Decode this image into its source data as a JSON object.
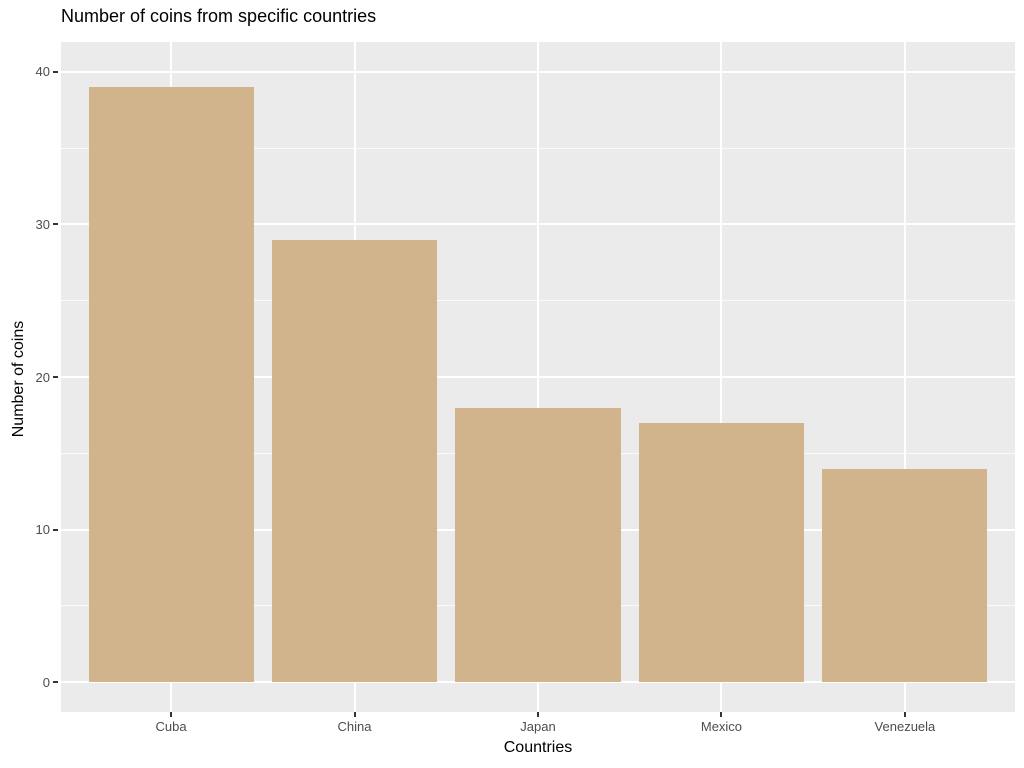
{
  "chart_data": {
    "type": "bar",
    "title": "Number of coins from specific countries",
    "xlabel": "Countries",
    "ylabel": "Number of coins",
    "categories": [
      "Cuba",
      "China",
      "Japan",
      "Mexico",
      "Venezuela"
    ],
    "values": [
      39,
      29,
      18,
      17,
      14
    ],
    "ylim": [
      0,
      40
    ],
    "y_major_ticks": [
      0,
      10,
      20,
      30,
      40
    ],
    "y_minor_ticks": [
      5,
      15,
      25,
      35
    ],
    "grid": "on",
    "legend": "none",
    "bar_color": "#d2b48c",
    "panel_background_color": "#ebebeb",
    "gridline_color": "#ffffff",
    "tick_label_color": "#4d4d4d",
    "tick_mark_color": "#333333",
    "title_color": "#000000"
  }
}
